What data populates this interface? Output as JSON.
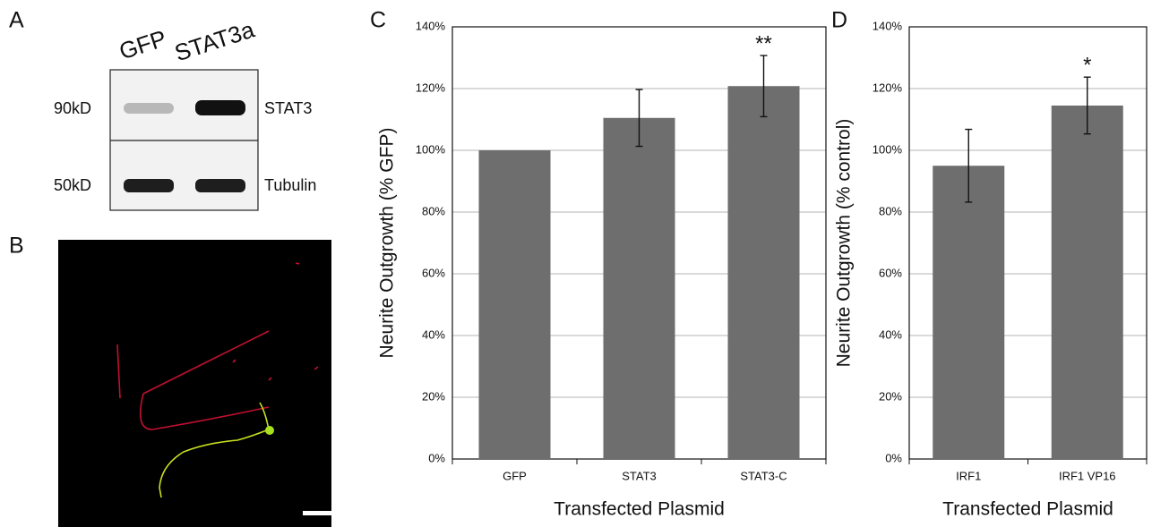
{
  "panel_labels": [
    "A",
    "B",
    "C",
    "D"
  ],
  "blot": {
    "lanes": [
      "GFP",
      "STAT3a"
    ],
    "rows": [
      {
        "size": "90kD",
        "label": "STAT3"
      },
      {
        "size": "50kD",
        "label": "Tubulin"
      }
    ]
  },
  "chart_data": [
    {
      "type": "bar",
      "ylabel": "Neurite Outgrowth (% GFP)",
      "xlabel": "Transfected Plasmid",
      "categories": [
        "GFP",
        "STAT3",
        "STAT3-C"
      ],
      "values": [
        100,
        110.5,
        120.8
      ],
      "errors": [
        null,
        9.2,
        9.9
      ],
      "significance": [
        null,
        null,
        "**"
      ],
      "color": "#6e6e6e",
      "ylim": [
        0,
        140
      ],
      "yticks": [
        {
          "value": 0,
          "label": "0%"
        },
        {
          "value": 20,
          "label": "20%"
        },
        {
          "value": 40,
          "label": "40%"
        },
        {
          "value": 60,
          "label": "60%"
        },
        {
          "value": 80,
          "label": "80%"
        },
        {
          "value": 100,
          "label": "100%"
        },
        {
          "value": 120,
          "label": "120%"
        },
        {
          "value": 140,
          "label": "140%"
        }
      ],
      "grid": true
    },
    {
      "type": "bar",
      "ylabel": "Neurite Outgrowth (% control)",
      "xlabel": "Transfected Plasmid",
      "categories": [
        "IRF1",
        "IRF1 VP16"
      ],
      "values": [
        95,
        114.5
      ],
      "errors": [
        11.8,
        9.2
      ],
      "significance": [
        null,
        "*"
      ],
      "color": "#6e6e6e",
      "ylim": [
        0,
        140
      ],
      "yticks": [
        {
          "value": 0,
          "label": "0%"
        },
        {
          "value": 20,
          "label": "20%"
        },
        {
          "value": 40,
          "label": "40%"
        },
        {
          "value": 60,
          "label": "60%"
        },
        {
          "value": 80,
          "label": "80%"
        },
        {
          "value": 100,
          "label": "100%"
        },
        {
          "value": 120,
          "label": "120%"
        },
        {
          "value": 140,
          "label": "140%"
        }
      ],
      "grid": true
    }
  ]
}
